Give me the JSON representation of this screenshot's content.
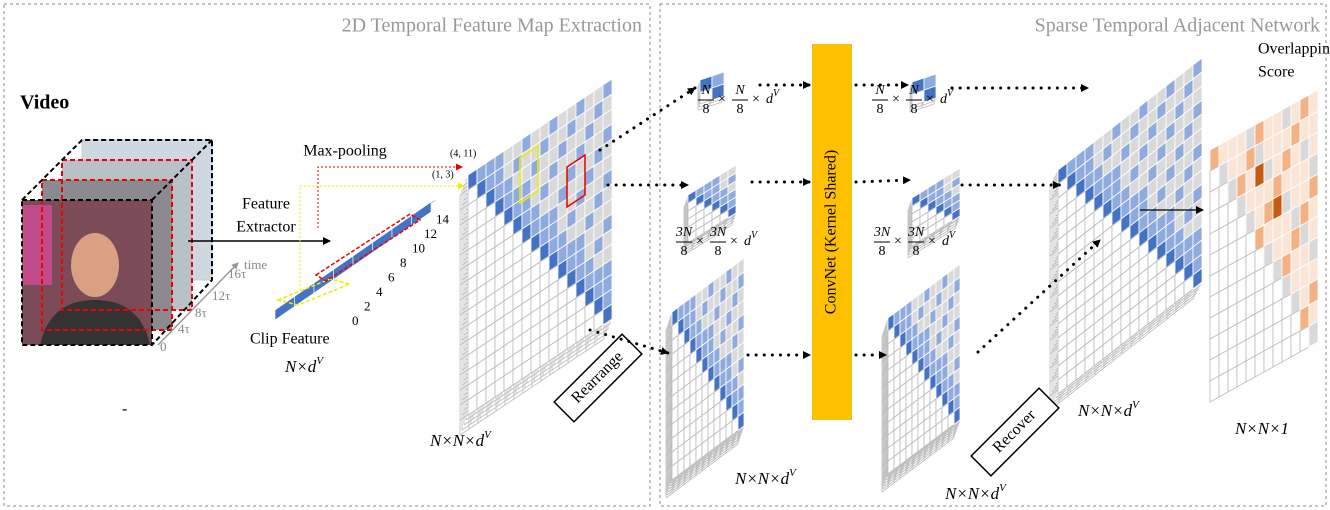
{
  "left_panel": {
    "title": "2D Temporal Feature Map Extraction",
    "video_label": "Video",
    "stray_mark": "-",
    "time_label": "time",
    "time_ticks": [
      "16τ",
      "12τ",
      "8τ",
      "4τ",
      "0"
    ],
    "feature_extractor": [
      "Feature",
      "Extractor"
    ],
    "max_pooling": "Max-pooling",
    "points": [
      "(4, 11)",
      "(1, 3)"
    ],
    "clip_feature": "Clip Feature",
    "clip_dims": {
      "base": "N×d",
      "sup": "V"
    },
    "clip_ticks": [
      "14",
      "12",
      "10",
      "8",
      "6",
      "4",
      "2",
      "0"
    ],
    "map_dims": {
      "base": "N×N×d",
      "sup": "V"
    },
    "rearrange": "Rearrange"
  },
  "right_panel": {
    "title": "Sparse Temporal Adjacent Network",
    "small_dims": [
      {
        "terms": [
          {
            "num": "N",
            "den": "8"
          },
          {
            "num": "N",
            "den": "8"
          }
        ],
        "times": "×",
        "base": "d",
        "sup": "V"
      },
      {
        "terms": [
          {
            "num": "N",
            "den": "8"
          },
          {
            "num": "N",
            "den": "8"
          }
        ],
        "times": "×",
        "base": "d",
        "sup": "V"
      }
    ],
    "medium_dims": [
      {
        "terms": [
          {
            "num": "3N",
            "den": "8"
          },
          {
            "num": "3N",
            "den": "8"
          }
        ],
        "times": "×",
        "base": "d",
        "sup": "V"
      },
      {
        "terms": [
          {
            "num": "3N",
            "den": "8"
          },
          {
            "num": "3N",
            "den": "8"
          }
        ],
        "times": "×",
        "base": "d",
        "sup": "V"
      }
    ],
    "convnet": "ConvNet (Kernel Shared)",
    "large_dims": [
      {
        "base": "N×N×d",
        "sup": "V"
      },
      {
        "base": "N×N×d",
        "sup": "V"
      }
    ],
    "recover": "Recover",
    "output_dims": {
      "base": "N×N×d",
      "sup": "V"
    },
    "score_title": [
      "Overlapping",
      "Score"
    ],
    "score_dims": "N×N×1"
  }
}
